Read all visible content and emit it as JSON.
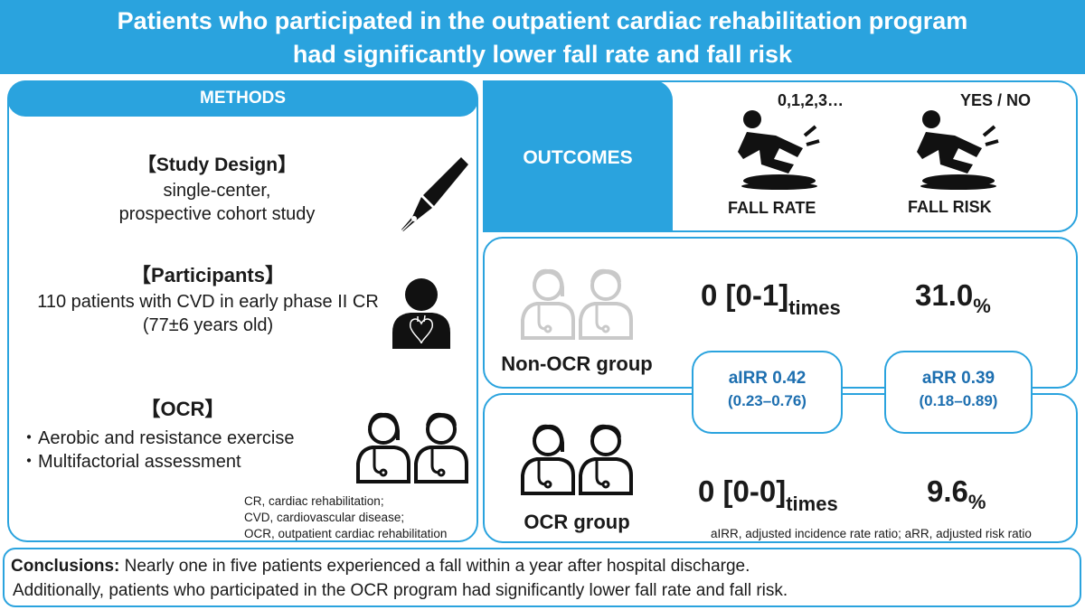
{
  "header": {
    "line1": "Patients who participated in the outpatient cardiac rehabilitation program",
    "line2": "had significantly lower fall rate and fall risk"
  },
  "methods": {
    "heading": "METHODS",
    "study_design": {
      "title": "【Study Design】",
      "line1": "single-center,",
      "line2": "prospective cohort study"
    },
    "participants": {
      "title": "【Participants】",
      "line1": "110 patients with CVD in early phase II CR",
      "line2": "(77±6 years old)"
    },
    "ocr": {
      "title": "【OCR】",
      "bullets": [
        "・Aerobic and resistance exercise",
        "・Multifactorial assessment"
      ]
    },
    "abbreviations": [
      "CR, cardiac rehabilitation;",
      "CVD, cardiovascular disease;",
      "OCR, outpatient cardiac rehabilitation"
    ]
  },
  "outcomes": {
    "heading": "OUTCOMES",
    "fall_rate": {
      "scale": "0,1,2,3…",
      "label": "FALL RATE"
    },
    "fall_risk": {
      "scale": "YES / NO",
      "label": "FALL RISK"
    }
  },
  "groups": {
    "non_ocr": {
      "label": "Non-OCR group",
      "rate_value": "0 [0-1]",
      "rate_unit": "times",
      "risk_value": "31.0",
      "risk_unit": "%"
    },
    "ocr": {
      "label": "OCR group",
      "rate_value": "0 [0-0]",
      "rate_unit": "times",
      "risk_value": "9.6",
      "risk_unit": "%"
    }
  },
  "ratios": {
    "airr": {
      "value": "aIRR 0.42",
      "ci": "(0.23–0.76)"
    },
    "arr": {
      "value": "aRR 0.39",
      "ci": "(0.18–0.89)"
    }
  },
  "outcome_abbreviations": "aIRR, adjusted incidence rate ratio; aRR, adjusted risk ratio",
  "conclusions": {
    "label": "Conclusions:",
    "line1": " Nearly one in five patients experienced a fall within a year after hospital discharge.",
    "line2": "Additionally, patients who participated in the OCR program had significantly lower fall rate and fall risk."
  },
  "colors": {
    "accent": "#2aa3de",
    "ratio_text": "#1d6fb0",
    "icon_dark": "#111111",
    "icon_gray": "#c9c9c9"
  },
  "icons": [
    "pen-nib-icon",
    "patient-heart-icon",
    "doctors-icon",
    "falling-person-icon"
  ]
}
